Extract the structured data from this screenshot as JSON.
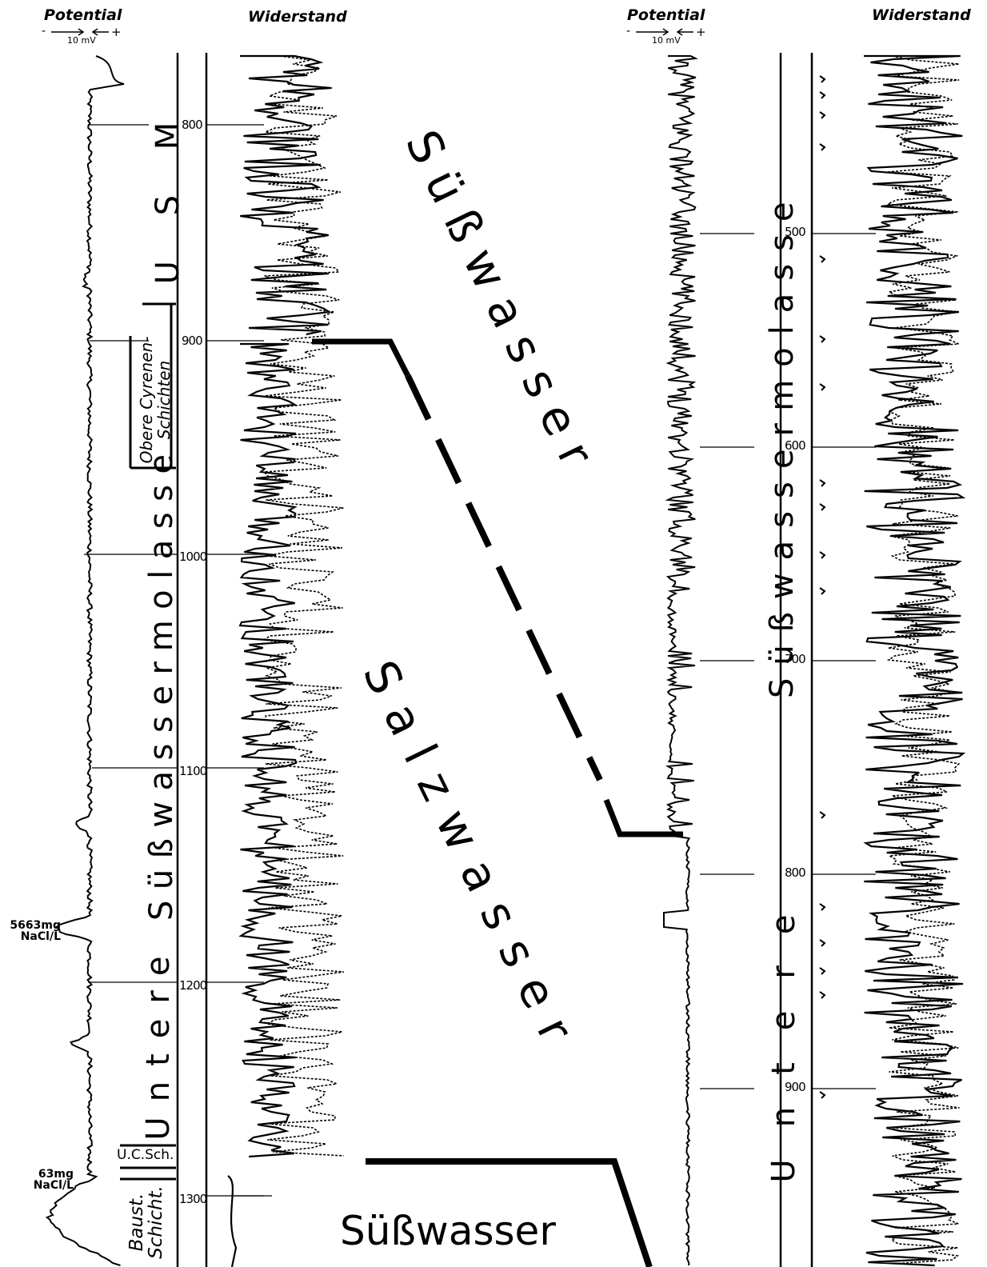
{
  "headers": {
    "potential_left": "Potential",
    "widerstand_left": "Widerstand",
    "potential_right": "Potential",
    "widerstand_right": "Widerstand",
    "scale_left": "10 mV",
    "scale_right": "10 mV",
    "minus_left": "-",
    "plus_left": "+",
    "minus_right": "-",
    "plus_right": "+"
  },
  "left_log": {
    "depth_ticks": [
      "800",
      "900",
      "1000",
      "1100",
      "1200",
      "1300"
    ],
    "units": {
      "usm": "U S M",
      "obere_cyrenen": "Obere Cyrenen-",
      "schichten": "Schichten",
      "suesswassermolasse": "Süßwassermolasse",
      "untere": "Untere",
      "ucsch": "U.C.Sch.",
      "baust": "Baust.",
      "schicht": "Schicht."
    },
    "annotations": {
      "nacl_high_value": "5663mg",
      "nacl_high_unit": "NaCl/L",
      "nacl_low_value": "63mg",
      "nacl_low_unit": "NaCl/L"
    }
  },
  "right_log": {
    "depth_ticks": [
      "500",
      "600",
      "700",
      "800",
      "900"
    ],
    "units": {
      "suesswassermolasse": "Süßwassermolasse",
      "untere": "Untere"
    }
  },
  "correlation": {
    "fresh_water_upper": "Süßwasser",
    "salt_water": "Salzwasser",
    "fresh_water_lower": "Süßwasser"
  },
  "colors": {
    "ink": "#000000",
    "paper": "#ffffff"
  }
}
